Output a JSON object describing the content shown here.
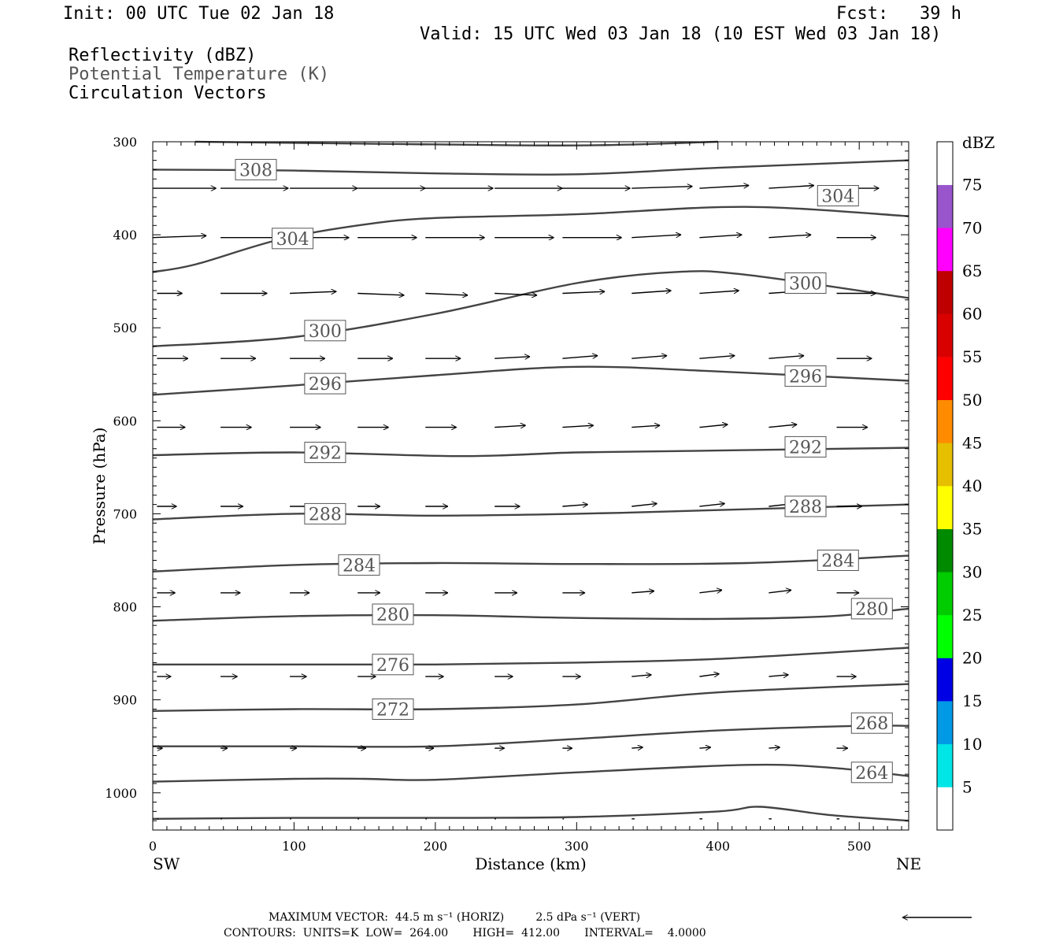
{
  "header": {
    "init": "Init: 00 UTC Tue 02 Jan 18",
    "fcst": "Fcst:   39 h",
    "valid": "Valid: 15 UTC Wed 03 Jan 18 (10 EST Wed 03 Jan 18)",
    "fields": [
      "Reflectivity (dBZ)",
      "Potential Temperature (K)",
      "Circulation Vectors"
    ]
  },
  "footer": {
    "max_vector": "MAXIMUM VECTOR:  44.5 m s⁻¹ (HORIZ)         2.5 dPa s⁻¹ (VERT)",
    "contours": "CONTOURS:  UNITS=K  LOW=  264.00       HIGH=  412.00       INTERVAL=    4.0000"
  },
  "colors": {
    "contour": "#444444",
    "text_gray": "#555555"
  },
  "chart_data": {
    "type": "line",
    "xlabel": "Distance (km)",
    "ylabel": "Pressure (hPa)",
    "xlim": [
      0,
      535
    ],
    "ylim": [
      1040,
      300
    ],
    "x_ticks": [
      0,
      100,
      200,
      300,
      400,
      500
    ],
    "y_ticks": [
      300,
      400,
      500,
      600,
      700,
      800,
      900,
      1000
    ],
    "x_end_labels": {
      "left": "SW",
      "right": "NE"
    },
    "colorbar": {
      "title": "dBZ",
      "levels": [
        5,
        10,
        15,
        20,
        25,
        30,
        35,
        40,
        45,
        50,
        55,
        60,
        65,
        70,
        75
      ],
      "colors": [
        "#ffffff",
        "#00e5e5",
        "#0099e5",
        "#0000e5",
        "#00ff00",
        "#00cc00",
        "#008a00",
        "#ffff00",
        "#e5bf00",
        "#ff8c00",
        "#ff0000",
        "#d90000",
        "#bf0000",
        "#ff00ff",
        "#9955cc",
        "#ffffff"
      ]
    },
    "contour_labels": [
      {
        "value": "308",
        "x": 73,
        "p": 330
      },
      {
        "value": "304",
        "x": 99,
        "p": 404
      },
      {
        "value": "304",
        "x": 485,
        "p": 358
      },
      {
        "value": "300",
        "x": 122,
        "p": 503
      },
      {
        "value": "300",
        "x": 462,
        "p": 452
      },
      {
        "value": "296",
        "x": 122,
        "p": 560
      },
      {
        "value": "296",
        "x": 462,
        "p": 552
      },
      {
        "value": "292",
        "x": 122,
        "p": 634
      },
      {
        "value": "292",
        "x": 462,
        "p": 628
      },
      {
        "value": "288",
        "x": 122,
        "p": 700
      },
      {
        "value": "288",
        "x": 462,
        "p": 692
      },
      {
        "value": "284",
        "x": 146,
        "p": 755
      },
      {
        "value": "284",
        "x": 485,
        "p": 750
      },
      {
        "value": "280",
        "x": 170,
        "p": 808
      },
      {
        "value": "280",
        "x": 509,
        "p": 802
      },
      {
        "value": "276",
        "x": 170,
        "p": 862
      },
      {
        "value": "272",
        "x": 170,
        "p": 910
      },
      {
        "value": "268",
        "x": 509,
        "p": 925
      },
      {
        "value": "264",
        "x": 509,
        "p": 978
      }
    ],
    "contours": [
      {
        "x": [
          30,
          150,
          300,
          400
        ],
        "p": [
          300,
          302,
          304,
          300
        ]
      },
      {
        "x": [
          0,
          100,
          200,
          300,
          400,
          535
        ],
        "p": [
          330,
          331,
          334,
          335,
          328,
          320
        ]
      },
      {
        "x": [
          0,
          30,
          90,
          150,
          200,
          300,
          420,
          535
        ],
        "p": [
          440,
          432,
          405,
          389,
          382,
          378,
          370,
          380
        ]
      },
      {
        "x": [
          0,
          100,
          200,
          300,
          370,
          420,
          535
        ],
        "p": [
          520,
          510,
          485,
          452,
          440,
          443,
          468
        ]
      },
      {
        "x": [
          0,
          100,
          200,
          300,
          400,
          535
        ],
        "p": [
          572,
          562,
          551,
          542,
          547,
          557
        ]
      },
      {
        "x": [
          0,
          100,
          220,
          300,
          400,
          535
        ],
        "p": [
          637,
          634,
          638,
          634,
          632,
          629
        ]
      },
      {
        "x": [
          0,
          100,
          200,
          300,
          400,
          535
        ],
        "p": [
          706,
          700,
          702,
          700,
          696,
          690
        ]
      },
      {
        "x": [
          0,
          100,
          200,
          300,
          420,
          535
        ],
        "p": [
          762,
          755,
          753,
          754,
          753,
          745
        ]
      },
      {
        "x": [
          0,
          100,
          200,
          300,
          400,
          480,
          535
        ],
        "p": [
          815,
          810,
          809,
          812,
          813,
          810,
          802
        ]
      },
      {
        "x": [
          0,
          100,
          200,
          300,
          400,
          535
        ],
        "p": [
          862,
          862,
          862,
          860,
          856,
          844
        ]
      },
      {
        "x": [
          0,
          100,
          200,
          300,
          400,
          535
        ],
        "p": [
          912,
          910,
          910,
          905,
          892,
          883
        ]
      },
      {
        "x": [
          0,
          100,
          200,
          300,
          400,
          500,
          535
        ],
        "p": [
          950,
          950,
          950,
          942,
          933,
          928,
          928
        ]
      },
      {
        "x": [
          0,
          100,
          150,
          200,
          300,
          420,
          480,
          535
        ],
        "p": [
          988,
          985,
          985,
          986,
          978,
          970,
          973,
          982
        ]
      },
      {
        "x": [
          0,
          100,
          200,
          300,
          400,
          430,
          480,
          535
        ],
        "p": [
          1028,
          1027,
          1027,
          1026,
          1020,
          1015,
          1024,
          1030
        ]
      }
    ],
    "vectors": [
      {
        "p": 350,
        "x0": [
          0,
          48,
          97,
          145,
          193,
          242,
          290,
          339,
          387,
          436,
          484
        ],
        "dx": [
          45,
          48,
          48,
          48,
          48,
          48,
          48,
          43,
          35,
          32,
          30
        ],
        "dp": [
          0,
          0,
          0,
          0,
          0,
          0,
          0,
          -2,
          -3,
          -3,
          0
        ]
      },
      {
        "p": 403,
        "x0": [
          0,
          48,
          97,
          145,
          193,
          242,
          290,
          339,
          387,
          436,
          484
        ],
        "dx": [
          38,
          40,
          42,
          42,
          42,
          42,
          42,
          35,
          30,
          30,
          28
        ],
        "dp": [
          -2,
          0,
          0,
          0,
          0,
          0,
          0,
          -3,
          -3,
          -3,
          0
        ]
      },
      {
        "p": 463,
        "x0": [
          3,
          48,
          97,
          145,
          193,
          242,
          290,
          339,
          387,
          436,
          484
        ],
        "dx": [
          18,
          33,
          33,
          33,
          30,
          30,
          30,
          28,
          28,
          28,
          28
        ],
        "dp": [
          0,
          0,
          -2,
          2,
          2,
          2,
          -2,
          -3,
          -3,
          -3,
          0
        ]
      },
      {
        "p": 533,
        "x0": [
          3,
          48,
          97,
          145,
          193,
          242,
          290,
          339,
          387,
          436,
          484
        ],
        "dx": [
          22,
          25,
          25,
          25,
          25,
          25,
          25,
          25,
          25,
          25,
          25
        ],
        "dp": [
          0,
          0,
          0,
          0,
          0,
          -2,
          -3,
          -3,
          -3,
          -3,
          0
        ]
      },
      {
        "p": 607,
        "x0": [
          3,
          48,
          97,
          145,
          193,
          242,
          290,
          339,
          387,
          436,
          484
        ],
        "dx": [
          20,
          22,
          22,
          22,
          22,
          22,
          22,
          20,
          20,
          20,
          22
        ],
        "dp": [
          0,
          0,
          0,
          0,
          0,
          -2,
          -2,
          -2,
          -3,
          -3,
          0
        ]
      },
      {
        "p": 692,
        "x0": [
          3,
          48,
          97,
          145,
          193,
          242,
          290,
          339,
          387,
          436,
          484
        ],
        "dx": [
          14,
          16,
          16,
          16,
          16,
          18,
          18,
          18,
          18,
          18,
          18
        ],
        "dp": [
          0,
          0,
          0,
          0,
          0,
          0,
          -2,
          -3,
          -3,
          -3,
          0
        ]
      },
      {
        "p": 785,
        "x0": [
          3,
          48,
          97,
          145,
          193,
          242,
          290,
          339,
          387,
          436,
          484
        ],
        "dx": [
          13,
          14,
          14,
          16,
          16,
          16,
          16,
          16,
          16,
          16,
          16
        ],
        "dp": [
          0,
          0,
          0,
          0,
          0,
          0,
          0,
          -2,
          -3,
          -3,
          0
        ]
      },
      {
        "p": 875,
        "x0": [
          3,
          48,
          97,
          145,
          193,
          242,
          290,
          339,
          387,
          436,
          484
        ],
        "dx": [
          10,
          12,
          12,
          13,
          13,
          13,
          13,
          14,
          14,
          14,
          14
        ],
        "dp": [
          0,
          0,
          0,
          0,
          0,
          0,
          0,
          -2,
          -3,
          -2,
          0
        ]
      },
      {
        "p": 952,
        "x0": [
          3,
          48,
          97,
          145,
          193,
          242,
          290,
          339,
          387,
          436,
          484
        ],
        "dx": [
          4,
          5,
          5,
          6,
          6,
          7,
          7,
          8,
          8,
          8,
          8
        ],
        "dp": [
          0,
          0,
          0,
          0,
          0,
          0,
          0,
          -1,
          -1,
          -1,
          0
        ]
      },
      {
        "p": 1028,
        "x0": [
          3,
          48,
          97,
          145,
          193,
          242,
          290,
          339,
          387,
          436,
          484
        ],
        "dx": [
          1,
          1,
          1,
          1,
          1,
          1,
          1,
          2,
          2,
          2,
          2
        ],
        "dp": [
          0,
          0,
          0,
          0,
          0,
          0,
          0,
          0,
          0,
          0,
          0
        ]
      }
    ]
  }
}
